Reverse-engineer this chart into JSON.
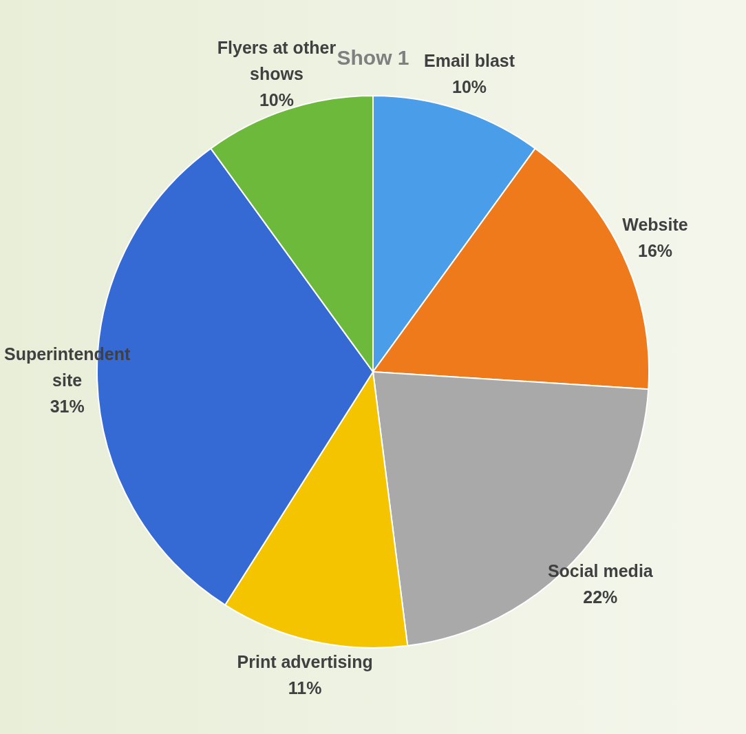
{
  "chart_data": {
    "type": "pie",
    "title": "Show 1",
    "categories": [
      "Email blast",
      "Website",
      "Social media",
      "Print advertising",
      "Superintendent site",
      "Flyers at other shows"
    ],
    "values": [
      10,
      16,
      22,
      11,
      31,
      10
    ],
    "value_labels": [
      "10%",
      "16%",
      "22%",
      "11%",
      "31%",
      "10%"
    ],
    "colors": [
      "#4a9de8",
      "#ee7a1c",
      "#a9a9a9",
      "#f5c400",
      "#3569d4",
      "#6cb93c"
    ],
    "legend": false
  }
}
